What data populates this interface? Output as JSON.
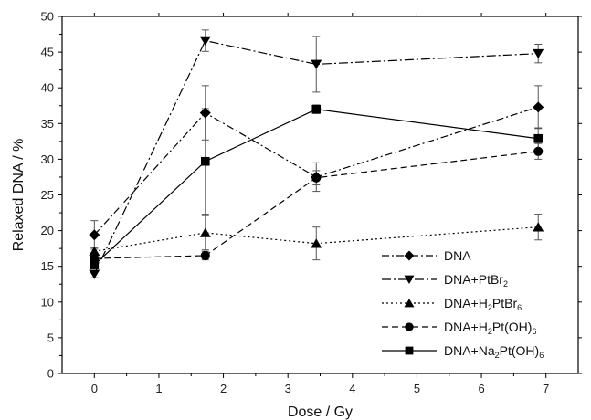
{
  "chart_data": {
    "type": "line",
    "xlabel": "Dose / Gy",
    "ylabel": "Relaxed DNA / %",
    "xlim": [
      -0.5,
      7.5
    ],
    "ylim": [
      0,
      50
    ],
    "xticks": [
      0,
      1,
      2,
      3,
      4,
      5,
      6,
      7
    ],
    "yticks": [
      0,
      5,
      10,
      15,
      20,
      25,
      30,
      35,
      40,
      45,
      50
    ],
    "grid": false,
    "legend_position": "bottom-right",
    "x": [
      0,
      1.72,
      3.44,
      6.88
    ],
    "series": [
      {
        "name": "DNA",
        "legend_parts": [
          {
            "t": "DNA",
            "sub": false
          }
        ],
        "marker": "diamond",
        "dash": "dash-dot",
        "values": [
          19.4,
          36.5,
          27.5,
          37.3
        ],
        "errors": [
          2.0,
          3.8,
          2.0,
          3.0
        ]
      },
      {
        "name": "DNA+PtBr2",
        "legend_parts": [
          {
            "t": "DNA+PtBr",
            "sub": false
          },
          {
            "t": "2",
            "sub": true
          }
        ],
        "marker": "triangle-down",
        "dash": "dash-dot-long",
        "values": [
          13.9,
          46.6,
          43.3,
          44.8
        ],
        "errors": [
          0.5,
          1.5,
          3.9,
          1.3
        ]
      },
      {
        "name": "DNA+H2PtBr6",
        "legend_parts": [
          {
            "t": "DNA+H",
            "sub": false
          },
          {
            "t": "2",
            "sub": true
          },
          {
            "t": "PtBr",
            "sub": false
          },
          {
            "t": "6",
            "sub": true
          }
        ],
        "marker": "triangle-up",
        "dash": "dotted",
        "values": [
          17.1,
          19.7,
          18.2,
          20.5
        ],
        "errors": [
          0.5,
          2.4,
          2.3,
          1.8
        ]
      },
      {
        "name": "DNA+H2Pt(OH)6",
        "legend_parts": [
          {
            "t": "DNA+H",
            "sub": false
          },
          {
            "t": "2",
            "sub": true
          },
          {
            "t": "Pt(OH)",
            "sub": false
          },
          {
            "t": "6",
            "sub": true
          }
        ],
        "marker": "circle",
        "dash": "dashed",
        "values": [
          16.1,
          16.5,
          27.4,
          31.1
        ],
        "errors": [
          0.5,
          0.6,
          1.0,
          1.1
        ]
      },
      {
        "name": "DNA+Na2Pt(OH)6",
        "legend_parts": [
          {
            "t": "DNA+Na",
            "sub": false
          },
          {
            "t": "2",
            "sub": true
          },
          {
            "t": "Pt(OH)",
            "sub": false
          },
          {
            "t": "6",
            "sub": true
          }
        ],
        "marker": "square",
        "dash": "solid",
        "values": [
          15.2,
          29.7,
          37.0,
          32.9
        ],
        "errors": [
          0.5,
          7.4,
          0.6,
          1.5
        ]
      }
    ]
  }
}
